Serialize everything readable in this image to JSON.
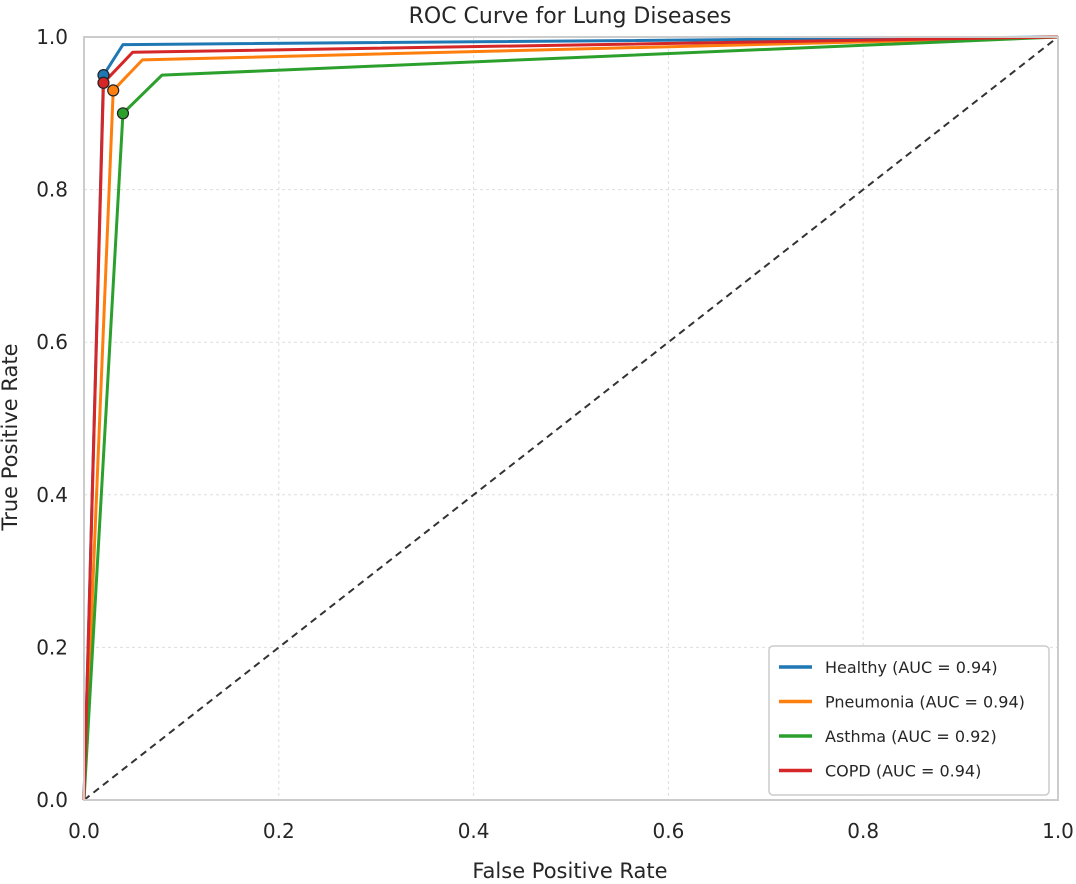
{
  "chart_data": {
    "type": "line",
    "title": "ROC Curve for Lung Diseases",
    "xlabel": "False Positive Rate",
    "ylabel": "True Positive Rate",
    "xlim": [
      0.0,
      1.0
    ],
    "ylim": [
      0.0,
      1.0
    ],
    "xticks": [
      "0.0",
      "0.2",
      "0.4",
      "0.6",
      "0.8",
      "1.0"
    ],
    "yticks": [
      "0.0",
      "0.2",
      "0.4",
      "0.6",
      "0.8",
      "1.0"
    ],
    "grid": true,
    "legend_position": "lower-right",
    "series": [
      {
        "name": "Healthy (AUC = 0.94)",
        "color": "#1f77b4",
        "x": [
          0.0,
          0.02,
          0.04,
          1.0
        ],
        "y": [
          0.0,
          0.95,
          0.99,
          1.0
        ],
        "marker": [
          0.02,
          0.95
        ]
      },
      {
        "name": "Pneumonia (AUC = 0.94)",
        "color": "#ff7f0e",
        "x": [
          0.0,
          0.03,
          0.06,
          1.0
        ],
        "y": [
          0.0,
          0.93,
          0.97,
          1.0
        ],
        "marker": [
          0.03,
          0.93
        ]
      },
      {
        "name": "Asthma (AUC = 0.92)",
        "color": "#2ca02c",
        "x": [
          0.0,
          0.04,
          0.08,
          1.0
        ],
        "y": [
          0.0,
          0.9,
          0.95,
          1.0
        ],
        "marker": [
          0.04,
          0.9
        ]
      },
      {
        "name": "COPD (AUC = 0.94)",
        "color": "#d62728",
        "x": [
          0.0,
          0.02,
          0.05,
          1.0
        ],
        "y": [
          0.0,
          0.94,
          0.98,
          1.0
        ],
        "marker": [
          0.02,
          0.94
        ]
      }
    ],
    "diagonal": {
      "x": [
        0.0,
        1.0
      ],
      "y": [
        0.0,
        1.0
      ],
      "color": "#333333"
    }
  }
}
